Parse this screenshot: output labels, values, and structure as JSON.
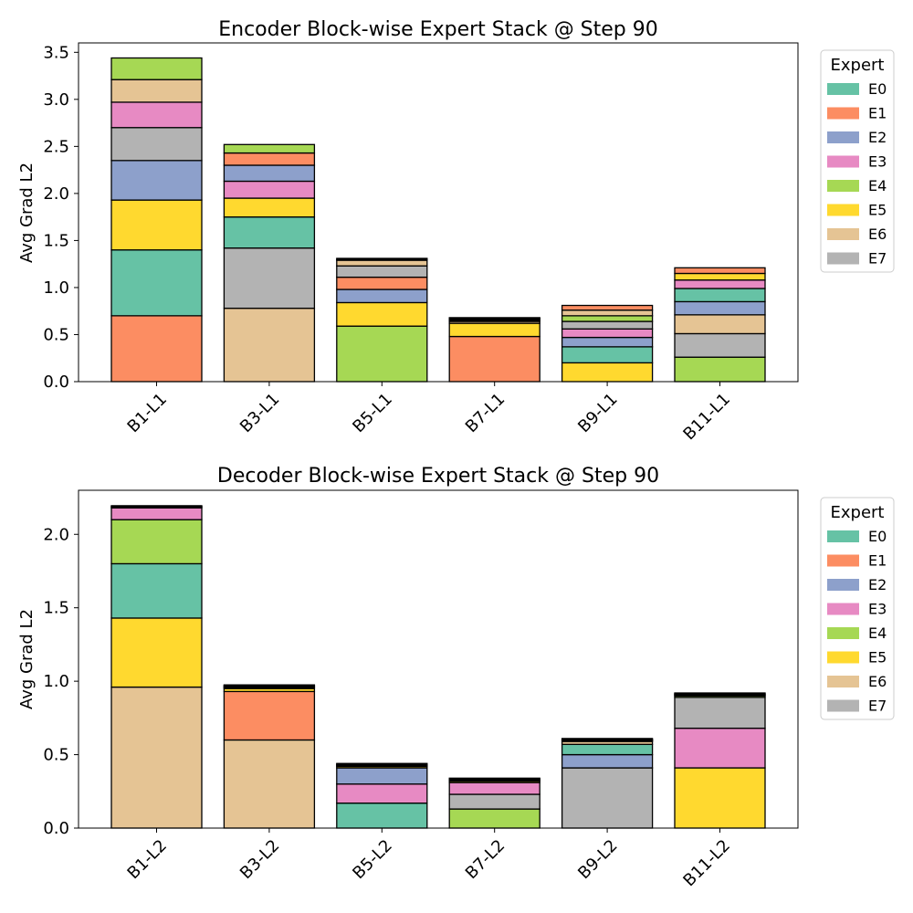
{
  "chart_data": [
    {
      "type": "bar",
      "stacked": true,
      "title": "Encoder Block-wise Expert Stack @ Step 90",
      "xlabel": "",
      "ylabel": "Avg Grad L2",
      "ylim": [
        0,
        3.6
      ],
      "yticks": [
        "0.0",
        "0.5",
        "1.0",
        "1.5",
        "2.0",
        "2.5",
        "3.0",
        "3.5"
      ],
      "categories": [
        "B1-L1",
        "B3-L1",
        "B5-L1",
        "B7-L1",
        "B9-L1",
        "B11-L1"
      ],
      "legend_title": "Expert",
      "legend_position": "outside-right",
      "stacks": [
        [
          {
            "expert": "E1",
            "value": 0.7
          },
          {
            "expert": "E0",
            "value": 0.7
          },
          {
            "expert": "E5",
            "value": 0.53
          },
          {
            "expert": "E2",
            "value": 0.42
          },
          {
            "expert": "E7",
            "value": 0.35
          },
          {
            "expert": "E3",
            "value": 0.27
          },
          {
            "expert": "E6",
            "value": 0.24
          },
          {
            "expert": "E4",
            "value": 0.23
          }
        ],
        [
          {
            "expert": "E6",
            "value": 0.78
          },
          {
            "expert": "E7",
            "value": 0.64
          },
          {
            "expert": "E0",
            "value": 0.33
          },
          {
            "expert": "E5",
            "value": 0.2
          },
          {
            "expert": "E3",
            "value": 0.18
          },
          {
            "expert": "E2",
            "value": 0.17
          },
          {
            "expert": "E1",
            "value": 0.13
          },
          {
            "expert": "E4",
            "value": 0.09
          }
        ],
        [
          {
            "expert": "E4",
            "value": 0.59
          },
          {
            "expert": "E5",
            "value": 0.25
          },
          {
            "expert": "E2",
            "value": 0.14
          },
          {
            "expert": "E1",
            "value": 0.13
          },
          {
            "expert": "E7",
            "value": 0.12
          },
          {
            "expert": "E6",
            "value": 0.06
          },
          {
            "expert": "E3",
            "value": 0.01
          },
          {
            "expert": "E0",
            "value": 0.01
          }
        ],
        [
          {
            "expert": "E1",
            "value": 0.48
          },
          {
            "expert": "E5",
            "value": 0.14
          },
          {
            "expert": "E6",
            "value": 0.02
          },
          {
            "expert": "E7",
            "value": 0.01
          },
          {
            "expert": "E2",
            "value": 0.01
          },
          {
            "expert": "E3",
            "value": 0.01
          },
          {
            "expert": "E4",
            "value": 0.005
          },
          {
            "expert": "E0",
            "value": 0.005
          }
        ],
        [
          {
            "expert": "E5",
            "value": 0.2
          },
          {
            "expert": "E0",
            "value": 0.17
          },
          {
            "expert": "E2",
            "value": 0.1
          },
          {
            "expert": "E3",
            "value": 0.09
          },
          {
            "expert": "E7",
            "value": 0.08
          },
          {
            "expert": "E4",
            "value": 0.06
          },
          {
            "expert": "E6",
            "value": 0.06
          },
          {
            "expert": "E1",
            "value": 0.05
          }
        ],
        [
          {
            "expert": "E4",
            "value": 0.26
          },
          {
            "expert": "E7",
            "value": 0.25
          },
          {
            "expert": "E6",
            "value": 0.2
          },
          {
            "expert": "E2",
            "value": 0.14
          },
          {
            "expert": "E0",
            "value": 0.14
          },
          {
            "expert": "E3",
            "value": 0.09
          },
          {
            "expert": "E5",
            "value": 0.07
          },
          {
            "expert": "E1",
            "value": 0.06
          }
        ]
      ]
    },
    {
      "type": "bar",
      "stacked": true,
      "title": "Decoder Block-wise Expert Stack @ Step 90",
      "xlabel": "",
      "ylabel": "Avg Grad L2",
      "ylim": [
        0,
        2.3
      ],
      "yticks": [
        "0.0",
        "0.5",
        "1.0",
        "1.5",
        "2.0"
      ],
      "categories": [
        "B1-L2",
        "B3-L2",
        "B5-L2",
        "B7-L2",
        "B9-L2",
        "B11-L2"
      ],
      "legend_title": "Expert",
      "legend_position": "outside-right",
      "stacks": [
        [
          {
            "expert": "E6",
            "value": 0.96
          },
          {
            "expert": "E5",
            "value": 0.47
          },
          {
            "expert": "E0",
            "value": 0.37
          },
          {
            "expert": "E4",
            "value": 0.3
          },
          {
            "expert": "E3",
            "value": 0.08
          },
          {
            "expert": "E2",
            "value": 0.005
          },
          {
            "expert": "E1",
            "value": 0.005
          },
          {
            "expert": "E7",
            "value": 0.005
          }
        ],
        [
          {
            "expert": "E6",
            "value": 0.6
          },
          {
            "expert": "E1",
            "value": 0.33
          },
          {
            "expert": "E5",
            "value": 0.02
          },
          {
            "expert": "E4",
            "value": 0.005
          },
          {
            "expert": "E0",
            "value": 0.005
          },
          {
            "expert": "E2",
            "value": 0.005
          },
          {
            "expert": "E3",
            "value": 0.005
          },
          {
            "expert": "E7",
            "value": 0.005
          }
        ],
        [
          {
            "expert": "E0",
            "value": 0.17
          },
          {
            "expert": "E3",
            "value": 0.13
          },
          {
            "expert": "E2",
            "value": 0.11
          },
          {
            "expert": "E5",
            "value": 0.01
          },
          {
            "expert": "E1",
            "value": 0.005
          },
          {
            "expert": "E4",
            "value": 0.005
          },
          {
            "expert": "E6",
            "value": 0.005
          },
          {
            "expert": "E7",
            "value": 0.005
          }
        ],
        [
          {
            "expert": "E4",
            "value": 0.13
          },
          {
            "expert": "E7",
            "value": 0.1
          },
          {
            "expert": "E3",
            "value": 0.08
          },
          {
            "expert": "E5",
            "value": 0.01
          },
          {
            "expert": "E1",
            "value": 0.005
          },
          {
            "expert": "E0",
            "value": 0.005
          },
          {
            "expert": "E2",
            "value": 0.005
          },
          {
            "expert": "E6",
            "value": 0.005
          }
        ],
        [
          {
            "expert": "E7",
            "value": 0.41
          },
          {
            "expert": "E2",
            "value": 0.09
          },
          {
            "expert": "E0",
            "value": 0.07
          },
          {
            "expert": "E6",
            "value": 0.02
          },
          {
            "expert": "E1",
            "value": 0.005
          },
          {
            "expert": "E3",
            "value": 0.005
          },
          {
            "expert": "E4",
            "value": 0.005
          },
          {
            "expert": "E5",
            "value": 0.005
          }
        ],
        [
          {
            "expert": "E5",
            "value": 0.41
          },
          {
            "expert": "E3",
            "value": 0.27
          },
          {
            "expert": "E7",
            "value": 0.21
          },
          {
            "expert": "E4",
            "value": 0.01
          },
          {
            "expert": "E0",
            "value": 0.005
          },
          {
            "expert": "E1",
            "value": 0.005
          },
          {
            "expert": "E2",
            "value": 0.005
          },
          {
            "expert": "E6",
            "value": 0.005
          }
        ]
      ]
    }
  ],
  "legend": {
    "title": "Expert",
    "items": [
      {
        "label": "E0",
        "color": "#66c2a5"
      },
      {
        "label": "E1",
        "color": "#fc8d62"
      },
      {
        "label": "E2",
        "color": "#8da0cb"
      },
      {
        "label": "E3",
        "color": "#e78ac3"
      },
      {
        "label": "E4",
        "color": "#a6d854"
      },
      {
        "label": "E5",
        "color": "#ffd92f"
      },
      {
        "label": "E6",
        "color": "#e5c494"
      },
      {
        "label": "E7",
        "color": "#b3b3b3"
      }
    ]
  }
}
